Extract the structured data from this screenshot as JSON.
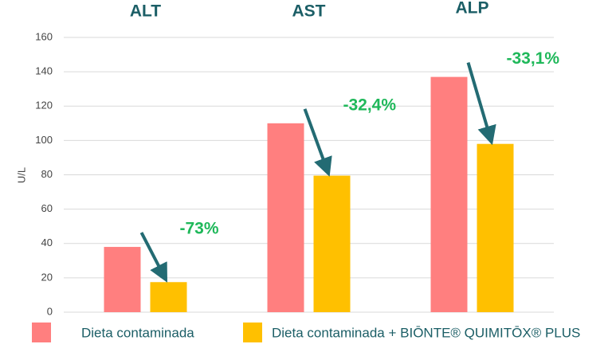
{
  "chart_data": {
    "type": "bar",
    "categories": [
      "ALT",
      "AST",
      "ALP"
    ],
    "y_label": "U/L",
    "series": [
      {
        "name": "Dieta contaminada",
        "color": "#ff7f7f",
        "values": [
          38,
          110,
          137
        ]
      },
      {
        "name": "Dieta contaminada + BIŌNTE® QUIMITŌX® PLUS",
        "color": "#ffc000",
        "values": [
          17.5,
          79.5,
          98
        ]
      }
    ],
    "annotations": [
      "-73%",
      "-32,4%",
      "-33,1%"
    ],
    "ylim": [
      0,
      160
    ],
    "yticks": [
      0,
      20,
      40,
      60,
      80,
      100,
      120,
      140,
      160
    ],
    "grid": true
  }
}
